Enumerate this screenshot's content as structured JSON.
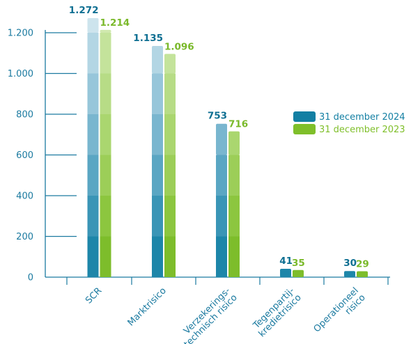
{
  "chart_data": {
    "type": "bar",
    "categories": [
      [
        "SCR"
      ],
      [
        "Marktrisico"
      ],
      [
        "Verzekerings-",
        "technisch risico"
      ],
      [
        "Tegenpartij-",
        "kredietrisico"
      ],
      [
        "Operationeel",
        "risico"
      ]
    ],
    "series": [
      {
        "name": "31 december 2024",
        "values": [
          1272,
          1135,
          753,
          41,
          30
        ],
        "labels": [
          "1.272",
          "1.135",
          "753",
          "41",
          "30"
        ],
        "color": "#137fa3",
        "label_color": "#0e6f92"
      },
      {
        "name": "31 december 2023",
        "values": [
          1214,
          1096,
          716,
          35,
          29
        ],
        "labels": [
          "1.214",
          "1.096",
          "716",
          "35",
          "29"
        ],
        "color": "#7fbf2a",
        "label_color": "#7ab92a"
      }
    ],
    "yticks": [
      0,
      200,
      400,
      600,
      800,
      1000,
      1200
    ],
    "ytick_labels": [
      "0",
      "200",
      "400",
      "600",
      "800",
      "1.000",
      "1.200"
    ],
    "ylim": [
      0,
      1200
    ],
    "legend_position": "right",
    "axis_color": "#1b7aa0"
  }
}
